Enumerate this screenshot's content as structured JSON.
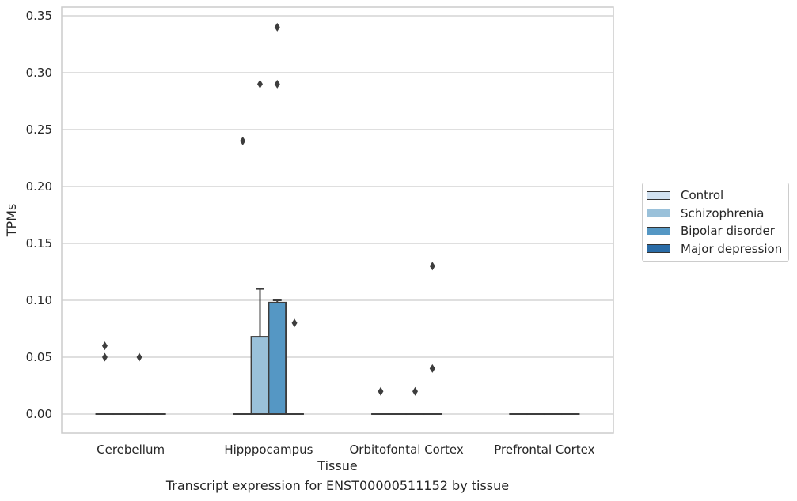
{
  "chart_data": {
    "type": "box",
    "title": "Transcript expression for ENST00000511152 by tissue",
    "xlabel": "Tissue",
    "ylabel": "TPMs",
    "ylim": [
      -0.017,
      0.357
    ],
    "yticks": [
      "0.00",
      "0.05",
      "0.10",
      "0.15",
      "0.20",
      "0.25",
      "0.30",
      "0.35"
    ],
    "ytick_values": [
      0,
      0.05,
      0.1,
      0.15,
      0.2,
      0.25,
      0.3,
      0.35
    ],
    "grid": "horizontal",
    "legend_position": "right",
    "categories": [
      "Cerebellum",
      "Hipppocampus",
      "Orbitofontal Cortex",
      "Prefrontal Cortex"
    ],
    "series": [
      {
        "name": "Control",
        "color": "#d1e1f0",
        "boxes": [
          {
            "q1": 0,
            "median": 0,
            "q3": 0,
            "whisker_low": 0,
            "whisker_high": 0,
            "outliers": [
              0.05,
              0.06
            ]
          },
          {
            "q1": 0,
            "median": 0,
            "q3": 0,
            "whisker_low": 0,
            "whisker_high": 0,
            "outliers": [
              0.24
            ]
          },
          {
            "q1": 0,
            "median": 0,
            "q3": 0,
            "whisker_low": 0,
            "whisker_high": 0,
            "outliers": [
              0.02
            ]
          },
          {
            "q1": 0,
            "median": 0,
            "q3": 0,
            "whisker_low": 0,
            "whisker_high": 0,
            "outliers": []
          }
        ]
      },
      {
        "name": "Schizophrenia",
        "color": "#9ac1da",
        "boxes": [
          {
            "q1": 0,
            "median": 0,
            "q3": 0,
            "whisker_low": 0,
            "whisker_high": 0,
            "outliers": []
          },
          {
            "q1": 0,
            "median": 0,
            "q3": 0.068,
            "whisker_low": 0,
            "whisker_high": 0.11,
            "outliers": [
              0.29
            ]
          },
          {
            "q1": 0,
            "median": 0,
            "q3": 0,
            "whisker_low": 0,
            "whisker_high": 0,
            "outliers": []
          },
          {
            "q1": 0,
            "median": 0,
            "q3": 0,
            "whisker_low": 0,
            "whisker_high": 0,
            "outliers": []
          }
        ]
      },
      {
        "name": "Bipolar disorder",
        "color": "#5597c4",
        "boxes": [
          {
            "q1": 0,
            "median": 0,
            "q3": 0,
            "whisker_low": 0,
            "whisker_high": 0,
            "outliers": [
              0.05
            ]
          },
          {
            "q1": 0,
            "median": 0,
            "q3": 0.098,
            "whisker_low": 0,
            "whisker_high": 0.1,
            "outliers": [
              0.29,
              0.34
            ]
          },
          {
            "q1": 0,
            "median": 0,
            "q3": 0,
            "whisker_low": 0,
            "whisker_high": 0,
            "outliers": [
              0.02
            ]
          },
          {
            "q1": 0,
            "median": 0,
            "q3": 0,
            "whisker_low": 0,
            "whisker_high": 0,
            "outliers": []
          }
        ]
      },
      {
        "name": "Major depression",
        "color": "#2a6ca7",
        "boxes": [
          {
            "q1": 0,
            "median": 0,
            "q3": 0,
            "whisker_low": 0,
            "whisker_high": 0,
            "outliers": []
          },
          {
            "q1": 0,
            "median": 0,
            "q3": 0,
            "whisker_low": 0,
            "whisker_high": 0,
            "outliers": [
              0.08
            ]
          },
          {
            "q1": 0,
            "median": 0,
            "q3": 0,
            "whisker_low": 0,
            "whisker_high": 0,
            "outliers": [
              0.04,
              0.13
            ]
          },
          {
            "q1": 0,
            "median": 0,
            "q3": 0,
            "whisker_low": 0,
            "whisker_high": 0,
            "outliers": []
          }
        ]
      }
    ]
  }
}
